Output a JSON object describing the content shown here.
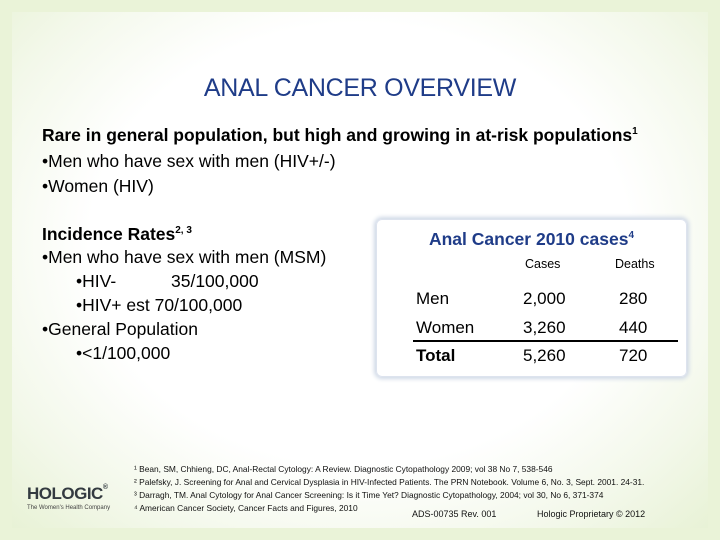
{
  "slide": {
    "title": "ANAL CANCER OVERVIEW",
    "intro": {
      "heading": "Rare in general population, but high and growing in at-risk populations",
      "heading_sup": "1",
      "bullets": [
        "•Men who have sex with men (HIV+/-)",
        "•Women (HIV)"
      ]
    },
    "incidence": {
      "heading": "Incidence Rates",
      "heading_sup": "2, 3",
      "msm": "•Men who have sex with men (MSM)",
      "hiv_neg_label": "•HIV-",
      "hiv_neg_value": "35/100,000",
      "hiv_pos": "•HIV+  est 70/100,000",
      "general": "•General Population",
      "general_value": "•<1/100,000"
    },
    "table": {
      "title": "Anal Cancer 2010 cases",
      "title_sup": "4",
      "headers": [
        "Cases",
        "Deaths"
      ],
      "rows": [
        {
          "label": "Men",
          "cases": "2,000",
          "deaths": "280"
        },
        {
          "label": "Women",
          "cases": "3,260",
          "deaths": "440"
        },
        {
          "label": "Total",
          "cases": "5,260",
          "deaths": "720"
        }
      ]
    },
    "footnotes": [
      "¹ Bean, SM, Chhieng, DC, Anal-Rectal Cytology: A Review. Diagnostic Cytopathology 2009; vol 38 No 7, 538-546",
      "² Palefsky, J. Screening for Anal and Cervical Dysplasia in HIV-Infected Patients. The PRN Notebook. Volume 6, No. 3, Sept. 2001. 24-31.",
      "³ Darragh, TM. Anal Cytology for Anal Cancer Screening: Is it Time Yet? Diagnostic Cytopathology, 2004; vol 30, No 6, 371-374",
      "⁴ American Cancer Society, Cancer Facts and Figures, 2010"
    ],
    "logo": {
      "name": "HOLOGIC",
      "mark": "®",
      "tagline": "The Women's Health Company"
    },
    "doc_number": "ADS-00735 Rev. 001",
    "proprietary": "Hologic Proprietary © 2012",
    "colors": {
      "title": "#1f3c88",
      "background": "#eaf3d8"
    }
  }
}
